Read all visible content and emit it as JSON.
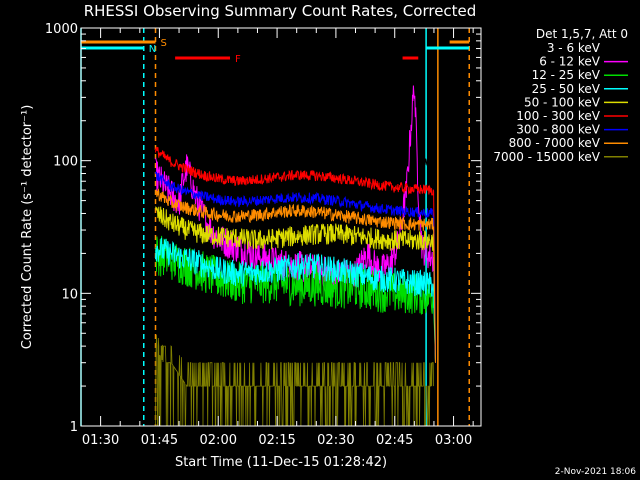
{
  "chart_data": {
    "type": "line",
    "title": "RHESSI Observing Summary Count Rates, Corrected",
    "xlabel": "Start Time (11-Dec-15 01:28:42)",
    "ylabel": "Corrected Count Rate (s⁻¹ detector⁻¹)",
    "footer": "2-Nov-2021 18:06",
    "y_scale": "log",
    "ylim": [
      1,
      1000
    ],
    "xlim": [
      "01:25",
      "03:07"
    ],
    "y_ticks": [
      {
        "v": 1,
        "label": "1"
      },
      {
        "v": 10,
        "label": "10"
      },
      {
        "v": 100,
        "label": "100"
      },
      {
        "v": 1000,
        "label": "1000"
      }
    ],
    "x_ticks": [
      {
        "t": "01:30",
        "label": "01:30"
      },
      {
        "t": "01:45",
        "label": "01:45"
      },
      {
        "t": "02:00",
        "label": "02:00"
      },
      {
        "t": "02:15",
        "label": "02:15"
      },
      {
        "t": "02:30",
        "label": "02:30"
      },
      {
        "t": "02:45",
        "label": "02:45"
      },
      {
        "t": "03:00",
        "label": "03:00"
      }
    ],
    "legend": {
      "header": "Det 1,5,7, Att 0",
      "placement": "right",
      "entries": [
        {
          "label": "3 - 6 keV",
          "color": "#000000"
        },
        {
          "label": "6 - 12 keV",
          "color": "#ff00ff"
        },
        {
          "label": "12 - 25 keV",
          "color": "#00dd00"
        },
        {
          "label": "25 - 50 keV",
          "color": "#00ffff"
        },
        {
          "label": "50 - 100 keV",
          "color": "#dddd00"
        },
        {
          "label": "100 - 300 keV",
          "color": "#ff0000"
        },
        {
          "label": "300 - 800 keV",
          "color": "#0000ff"
        },
        {
          "label": "800 - 7000 keV",
          "color": "#ff8c00"
        },
        {
          "label": "7000 - 15000 keV",
          "color": "#808000"
        }
      ]
    },
    "flag_bars": [
      {
        "label": "S",
        "color": "#ff8c00",
        "segments": [
          [
            "01:25",
            "01:44"
          ],
          [
            "02:59",
            "03:04"
          ]
        ]
      },
      {
        "label": "N",
        "color": "#00ffff",
        "segments": [
          [
            "01:25",
            "01:41"
          ],
          [
            "02:53",
            "03:04"
          ]
        ]
      },
      {
        "label": "F",
        "color": "#ff0000",
        "segments": [
          [
            "01:49",
            "02:03"
          ],
          [
            "02:47",
            "02:51"
          ]
        ]
      }
    ],
    "markers": [
      {
        "t": "01:25",
        "color": "#00ffff",
        "style": "solid"
      },
      {
        "t": "01:41",
        "color": "#00ffff",
        "style": "dashed"
      },
      {
        "t": "01:44",
        "color": "#ff8c00",
        "style": "dashed"
      },
      {
        "t": "02:53",
        "color": "#00ffff",
        "style": "solid"
      },
      {
        "t": "02:56",
        "color": "#ff8c00",
        "style": "solid"
      },
      {
        "t": "03:04",
        "color": "#ff8c00",
        "style": "dashed"
      }
    ],
    "series": [
      {
        "name": "3 - 6 keV",
        "color": "#000000",
        "points": [
          [
            "01:44",
            120
          ],
          [
            "01:46",
            112
          ],
          [
            "01:48",
            128
          ],
          [
            "01:50",
            148
          ],
          [
            "01:52",
            172
          ],
          [
            "01:54",
            160
          ],
          [
            "01:56",
            145
          ],
          [
            "01:58",
            132
          ],
          [
            "02:00",
            122
          ],
          [
            "02:05",
            114
          ],
          [
            "02:10",
            108
          ],
          [
            "02:15",
            103
          ],
          [
            "02:20",
            101
          ],
          [
            "02:25",
            100
          ],
          [
            "02:30",
            100
          ],
          [
            "02:35",
            99
          ],
          [
            "02:40",
            100
          ],
          [
            "02:45",
            102
          ],
          [
            "02:46",
            110
          ],
          [
            "02:47",
            125
          ],
          [
            "02:48",
            170
          ],
          [
            "02:49",
            280
          ],
          [
            "02:50",
            380
          ],
          [
            "02:51",
            140
          ],
          [
            "02:52",
            98
          ],
          [
            "02:55",
            96
          ]
        ]
      },
      {
        "name": "6 - 12 keV",
        "color": "#ff00ff",
        "points": [
          [
            "01:44",
            80
          ],
          [
            "01:46",
            66
          ],
          [
            "01:48",
            56
          ],
          [
            "01:50",
            48
          ],
          [
            "01:51",
            70
          ],
          [
            "01:52",
            90
          ],
          [
            "01:53",
            72
          ],
          [
            "01:54",
            55
          ],
          [
            "01:56",
            40
          ],
          [
            "01:58",
            30
          ],
          [
            "02:00",
            26
          ],
          [
            "02:05",
            22
          ],
          [
            "02:10",
            19
          ],
          [
            "02:15",
            17
          ],
          [
            "02:20",
            16
          ],
          [
            "02:25",
            15
          ],
          [
            "02:30",
            14
          ],
          [
            "02:35",
            14
          ],
          [
            "02:38",
            20
          ],
          [
            "02:40",
            16
          ],
          [
            "02:42",
            15
          ],
          [
            "02:44",
            17
          ],
          [
            "02:46",
            24
          ],
          [
            "02:48",
            60
          ],
          [
            "02:49",
            160
          ],
          [
            "02:50",
            380
          ],
          [
            "02:51",
            60
          ],
          [
            "02:52",
            22
          ],
          [
            "02:55",
            18
          ]
        ]
      },
      {
        "name": "12 - 25 keV",
        "color": "#00dd00",
        "points": [
          [
            "01:44",
            20
          ],
          [
            "01:50",
            17
          ],
          [
            "01:55",
            15
          ],
          [
            "02:00",
            13
          ],
          [
            "02:05",
            12
          ],
          [
            "02:10",
            12
          ],
          [
            "02:15",
            12
          ],
          [
            "02:20",
            11.5
          ],
          [
            "02:25",
            11.5
          ],
          [
            "02:30",
            11
          ],
          [
            "02:35",
            11
          ],
          [
            "02:40",
            10.5
          ],
          [
            "02:45",
            10
          ],
          [
            "02:50",
            10
          ],
          [
            "02:55",
            9.5
          ]
        ]
      },
      {
        "name": "25 - 50 keV",
        "color": "#00ffff",
        "points": [
          [
            "01:44",
            22
          ],
          [
            "01:50",
            19
          ],
          [
            "01:55",
            17
          ],
          [
            "02:00",
            15
          ],
          [
            "02:05",
            14
          ],
          [
            "02:10",
            14.5
          ],
          [
            "02:15",
            15
          ],
          [
            "02:20",
            16
          ],
          [
            "02:25",
            16
          ],
          [
            "02:30",
            15
          ],
          [
            "02:35",
            14
          ],
          [
            "02:40",
            13
          ],
          [
            "02:45",
            12.5
          ],
          [
            "02:50",
            12
          ],
          [
            "02:55",
            11.5
          ]
        ]
      },
      {
        "name": "50 - 100 keV",
        "color": "#dddd00",
        "points": [
          [
            "01:44",
            40
          ],
          [
            "01:48",
            34
          ],
          [
            "01:52",
            30
          ],
          [
            "01:56",
            28
          ],
          [
            "02:00",
            27
          ],
          [
            "02:05",
            26
          ],
          [
            "02:10",
            25
          ],
          [
            "02:15",
            26
          ],
          [
            "02:20",
            27
          ],
          [
            "02:25",
            28
          ],
          [
            "02:30",
            28
          ],
          [
            "02:35",
            27
          ],
          [
            "02:40",
            26
          ],
          [
            "02:45",
            25
          ],
          [
            "02:50",
            25
          ],
          [
            "02:55",
            25
          ]
        ]
      },
      {
        "name": "100 - 300 keV",
        "color": "#ff0000",
        "points": [
          [
            "01:44",
            120
          ],
          [
            "01:48",
            98
          ],
          [
            "01:52",
            86
          ],
          [
            "01:56",
            78
          ],
          [
            "02:00",
            73
          ],
          [
            "02:05",
            70
          ],
          [
            "02:10",
            72
          ],
          [
            "02:15",
            75
          ],
          [
            "02:20",
            78
          ],
          [
            "02:25",
            77
          ],
          [
            "02:30",
            74
          ],
          [
            "02:35",
            70
          ],
          [
            "02:40",
            66
          ],
          [
            "02:45",
            63
          ],
          [
            "02:50",
            61
          ],
          [
            "02:55",
            60
          ]
        ]
      },
      {
        "name": "300 - 800 keV",
        "color": "#0000ff",
        "points": [
          [
            "01:44",
            78
          ],
          [
            "01:48",
            64
          ],
          [
            "01:52",
            58
          ],
          [
            "01:56",
            54
          ],
          [
            "02:00",
            51
          ],
          [
            "02:05",
            49
          ],
          [
            "02:10",
            50
          ],
          [
            "02:15",
            52
          ],
          [
            "02:20",
            53
          ],
          [
            "02:25",
            52
          ],
          [
            "02:30",
            50
          ],
          [
            "02:35",
            47
          ],
          [
            "02:40",
            44
          ],
          [
            "02:45",
            42
          ],
          [
            "02:50",
            41
          ],
          [
            "02:55",
            40
          ]
        ]
      },
      {
        "name": "800 - 7000 keV",
        "color": "#ff8c00",
        "points": [
          [
            "01:44",
            58
          ],
          [
            "01:48",
            48
          ],
          [
            "01:52",
            44
          ],
          [
            "01:56",
            41
          ],
          [
            "02:00",
            39
          ],
          [
            "02:05",
            38
          ],
          [
            "02:10",
            39
          ],
          [
            "02:15",
            41
          ],
          [
            "02:20",
            42
          ],
          [
            "02:25",
            41
          ],
          [
            "02:30",
            39
          ],
          [
            "02:35",
            37
          ],
          [
            "02:40",
            35
          ],
          [
            "02:45",
            34
          ],
          [
            "02:50",
            33
          ],
          [
            "02:55",
            33
          ]
        ]
      },
      {
        "name": "7000 - 15000 keV",
        "color": "#808000",
        "quantized": true,
        "points": [
          [
            "01:44",
            4
          ],
          [
            "01:46",
            3
          ],
          [
            "01:48",
            3
          ],
          [
            "01:52",
            2
          ],
          [
            "01:56",
            2
          ],
          [
            "02:00",
            2
          ],
          [
            "02:05",
            2
          ],
          [
            "02:10",
            2
          ],
          [
            "02:15",
            2
          ],
          [
            "02:20",
            2
          ],
          [
            "02:25",
            2
          ],
          [
            "02:30",
            2
          ],
          [
            "02:35",
            2
          ],
          [
            "02:40",
            2
          ],
          [
            "02:45",
            2
          ],
          [
            "02:50",
            2
          ],
          [
            "02:55",
            2
          ]
        ]
      }
    ]
  }
}
